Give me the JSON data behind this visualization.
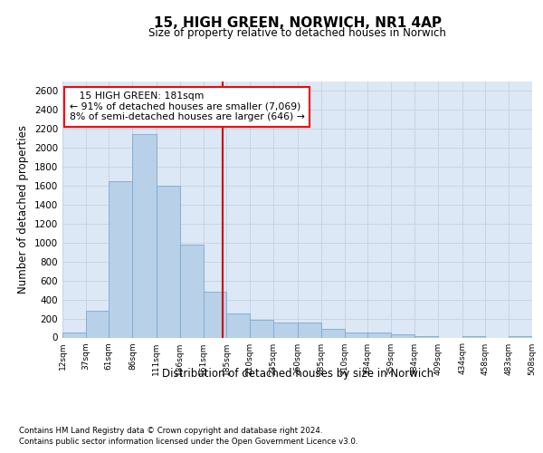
{
  "title": "15, HIGH GREEN, NORWICH, NR1 4AP",
  "subtitle": "Size of property relative to detached houses in Norwich",
  "xlabel": "Distribution of detached houses by size in Norwich",
  "ylabel": "Number of detached properties",
  "footnote1": "Contains HM Land Registry data © Crown copyright and database right 2024.",
  "footnote2": "Contains public sector information licensed under the Open Government Licence v3.0.",
  "annotation_line1": "   15 HIGH GREEN: 181sqm",
  "annotation_line2": "← 91% of detached houses are smaller (7,069)",
  "annotation_line3": "8% of semi-detached houses are larger (646) →",
  "bar_color": "#b8d0e8",
  "bar_edge_color": "#7aaad0",
  "vline_color": "#cc0000",
  "vline_x": 181,
  "bin_edges": [
    12,
    37,
    61,
    86,
    111,
    136,
    161,
    185,
    210,
    235,
    260,
    285,
    310,
    334,
    359,
    384,
    409,
    434,
    458,
    483,
    508
  ],
  "bar_heights": [
    50,
    280,
    1650,
    2150,
    1600,
    975,
    480,
    250,
    185,
    160,
    155,
    90,
    50,
    50,
    30,
    10,
    0,
    10,
    0,
    10
  ],
  "ylim": [
    0,
    2700
  ],
  "yticks": [
    0,
    200,
    400,
    600,
    800,
    1000,
    1200,
    1400,
    1600,
    1800,
    2000,
    2200,
    2400,
    2600
  ],
  "grid_color": "#c8d4e4",
  "background_color": "#dce8f5",
  "fig_background": "#ffffff"
}
